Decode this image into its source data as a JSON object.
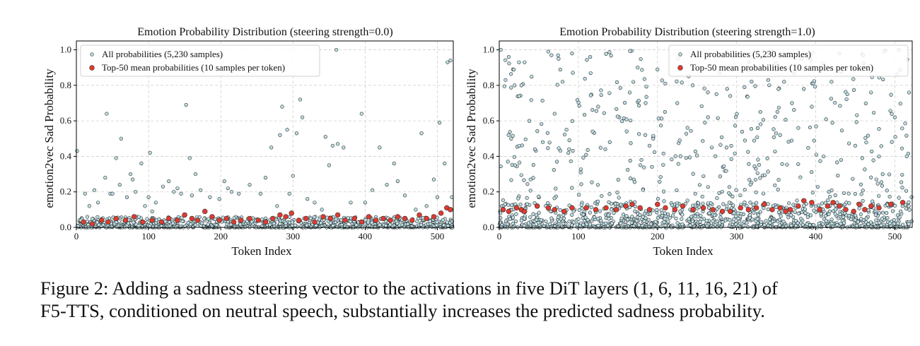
{
  "caption": {
    "line1": "Figure 2: Adding a sadness steering vector to the activations in five DiT layers (1, 6, 11, 16, 21) of",
    "line2": "F5-TTS, conditioned on neutral speech, substantially increases the predicted sadness probability."
  },
  "colors": {
    "all_fill": "#bfe0e6",
    "all_edge": "#222222",
    "mean_fill": "#e03a30",
    "mean_edge": "#333333",
    "grid": "#cfcfcf"
  },
  "chart_data": [
    {
      "type": "scatter",
      "title": "Emotion Probability Distribution (steering strength=0.0)",
      "xlabel": "Token Index",
      "ylabel": "emotion2vec Sad Probability",
      "xlim": [
        0,
        522
      ],
      "ylim": [
        0.0,
        1.05
      ],
      "xticks": [
        0,
        100,
        200,
        300,
        400,
        500
      ],
      "yticks": [
        0.0,
        0.2,
        0.4,
        0.6,
        0.8,
        1.0
      ],
      "ytick_labels": [
        "0.0",
        "0.2",
        "0.4",
        "0.6",
        "0.8",
        "1.0"
      ],
      "grid": true,
      "legend": {
        "position": "top-left",
        "entries": [
          "All probabilities (5,230 samples)",
          "Top-50 mean probabilities (10 samples per token)"
        ]
      },
      "series": [
        {
          "name": "All probabilities (5,230 samples)",
          "note": "dense band 0.00-0.05 across all tokens plus visible outliers",
          "base_band": {
            "ymin": 0.0,
            "ymax": 0.06,
            "count": 900
          },
          "points": [
            [
              1,
              0.43
            ],
            [
              12,
              0.19
            ],
            [
              18,
              0.12
            ],
            [
              25,
              0.21
            ],
            [
              30,
              0.14
            ],
            [
              40,
              0.28
            ],
            [
              42,
              0.64
            ],
            [
              47,
              0.19
            ],
            [
              50,
              0.19
            ],
            [
              55,
              0.39
            ],
            [
              60,
              0.24
            ],
            [
              62,
              0.5
            ],
            [
              70,
              0.17
            ],
            [
              75,
              0.3
            ],
            [
              78,
              0.27
            ],
            [
              82,
              0.2
            ],
            [
              90,
              0.36
            ],
            [
              95,
              0.12
            ],
            [
              100,
              0.17
            ],
            [
              102,
              0.42
            ],
            [
              105,
              0.09
            ],
            [
              110,
              0.14
            ],
            [
              120,
              0.23
            ],
            [
              128,
              0.26
            ],
            [
              135,
              0.2
            ],
            [
              140,
              0.22
            ],
            [
              145,
              0.19
            ],
            [
              152,
              0.69
            ],
            [
              157,
              0.39
            ],
            [
              160,
              0.18
            ],
            [
              165,
              0.3
            ],
            [
              172,
              0.21
            ],
            [
              185,
              0.17
            ],
            [
              198,
              0.16
            ],
            [
              205,
              0.26
            ],
            [
              210,
              0.22
            ],
            [
              215,
              0.2
            ],
            [
              225,
              0.19
            ],
            [
              240,
              0.24
            ],
            [
              255,
              0.19
            ],
            [
              262,
              0.28
            ],
            [
              270,
              0.45
            ],
            [
              278,
              0.12
            ],
            [
              282,
              0.52
            ],
            [
              285,
              0.68
            ],
            [
              292,
              0.55
            ],
            [
              295,
              0.19
            ],
            [
              300,
              0.29
            ],
            [
              305,
              0.53
            ],
            [
              310,
              0.72
            ],
            [
              313,
              0.62
            ],
            [
              320,
              0.16
            ],
            [
              330,
              0.14
            ],
            [
              340,
              0.1
            ],
            [
              345,
              0.51
            ],
            [
              350,
              0.35
            ],
            [
              355,
              0.46
            ],
            [
              360,
              1.0
            ],
            [
              362,
              0.47
            ],
            [
              370,
              0.45
            ],
            [
              380,
              0.14
            ],
            [
              395,
              0.64
            ],
            [
              400,
              0.14
            ],
            [
              410,
              0.21
            ],
            [
              420,
              0.45
            ],
            [
              430,
              0.24
            ],
            [
              440,
              0.36
            ],
            [
              445,
              0.26
            ],
            [
              455,
              0.18
            ],
            [
              470,
              0.1
            ],
            [
              478,
              0.53
            ],
            [
              485,
              0.12
            ],
            [
              495,
              0.27
            ],
            [
              500,
              0.17
            ],
            [
              503,
              0.59
            ],
            [
              510,
              0.36
            ],
            [
              514,
              0.93
            ],
            [
              518,
              0.94
            ],
            [
              520,
              0.17
            ]
          ]
        },
        {
          "name": "Top-50 mean probabilities (10 samples per token)",
          "points": [
            [
              10,
              0.03
            ],
            [
              22,
              0.02
            ],
            [
              35,
              0.04
            ],
            [
              44,
              0.03
            ],
            [
              55,
              0.05
            ],
            [
              68,
              0.04
            ],
            [
              80,
              0.06
            ],
            [
              92,
              0.03
            ],
            [
              105,
              0.04
            ],
            [
              118,
              0.03
            ],
            [
              128,
              0.05
            ],
            [
              140,
              0.04
            ],
            [
              150,
              0.07
            ],
            [
              160,
              0.05
            ],
            [
              168,
              0.04
            ],
            [
              178,
              0.09
            ],
            [
              188,
              0.06
            ],
            [
              198,
              0.04
            ],
            [
              208,
              0.05
            ],
            [
              218,
              0.03
            ],
            [
              228,
              0.04
            ],
            [
              240,
              0.05
            ],
            [
              252,
              0.04
            ],
            [
              262,
              0.03
            ],
            [
              272,
              0.05
            ],
            [
              282,
              0.07
            ],
            [
              290,
              0.06
            ],
            [
              298,
              0.08
            ],
            [
              308,
              0.04
            ],
            [
              318,
              0.05
            ],
            [
              330,
              0.03
            ],
            [
              342,
              0.06
            ],
            [
              352,
              0.05
            ],
            [
              362,
              0.07
            ],
            [
              372,
              0.04
            ],
            [
              385,
              0.05
            ],
            [
              395,
              0.03
            ],
            [
              405,
              0.06
            ],
            [
              415,
              0.04
            ],
            [
              425,
              0.05
            ],
            [
              435,
              0.04
            ],
            [
              445,
              0.06
            ],
            [
              455,
              0.05
            ],
            [
              465,
              0.04
            ],
            [
              475,
              0.07
            ],
            [
              485,
              0.05
            ],
            [
              495,
              0.06
            ],
            [
              505,
              0.08
            ],
            [
              513,
              0.11
            ],
            [
              518,
              0.1
            ]
          ]
        }
      ]
    },
    {
      "type": "scatter",
      "title": "Emotion Probability Distribution (steering strength=1.0)",
      "xlabel": "Token Index",
      "ylabel": "emotion2vec Sad Probability",
      "xlim": [
        0,
        522
      ],
      "ylim": [
        0.0,
        1.05
      ],
      "xticks": [
        0,
        100,
        200,
        300,
        400,
        500
      ],
      "yticks": [
        0.0,
        0.2,
        0.4,
        0.6,
        0.8,
        1.0
      ],
      "ytick_labels": [
        "0.0",
        "0.2",
        "0.4",
        "0.6",
        "0.8",
        "1.0"
      ],
      "grid": true,
      "legend": {
        "position": "top-right",
        "entries": [
          "All probabilities (5,230 samples)",
          "Top-50 mean probabilities (10 samples per token)"
        ]
      },
      "series": [
        {
          "name": "All probabilities (5,230 samples)",
          "note": "dense band 0.00-0.12 across all tokens plus many scattered high values",
          "base_band": {
            "ymin": 0.0,
            "ymax": 0.14,
            "count": 1000
          },
          "scatter_band": {
            "ymin": 0.12,
            "ymax": 1.0,
            "count": 420
          },
          "points": [
            [
              2,
              1.0
            ],
            [
              8,
              0.83
            ],
            [
              12,
              0.96
            ],
            [
              15,
              0.5
            ],
            [
              20,
              0.35
            ],
            [
              25,
              0.93
            ],
            [
              28,
              0.8
            ],
            [
              32,
              0.93
            ],
            [
              38,
              0.6
            ],
            [
              45,
              0.44
            ],
            [
              55,
              0.48
            ],
            [
              62,
              0.99
            ],
            [
              66,
              0.97
            ],
            [
              70,
              0.64
            ],
            [
              75,
              0.95
            ],
            [
              80,
              0.82
            ],
            [
              85,
              0.55
            ],
            [
              92,
              0.98
            ],
            [
              115,
              0.96
            ],
            [
              118,
              0.54
            ],
            [
              125,
              0.68
            ],
            [
              165,
              0.76
            ],
            [
              175,
              0.9
            ],
            [
              185,
              0.7
            ],
            [
              190,
              0.46
            ],
            [
              200,
              0.89
            ],
            [
              210,
              0.81
            ],
            [
              225,
              0.7
            ],
            [
              260,
              0.59
            ],
            [
              288,
              0.78
            ],
            [
              292,
              0.74
            ],
            [
              300,
              0.97
            ],
            [
              310,
              0.79
            ],
            [
              330,
              0.65
            ],
            [
              340,
              0.83
            ],
            [
              355,
              0.52
            ],
            [
              360,
              0.82
            ],
            [
              370,
              0.7
            ],
            [
              378,
              0.56
            ],
            [
              385,
              0.78
            ],
            [
              395,
              0.68
            ],
            [
              410,
              0.4
            ],
            [
              420,
              0.82
            ],
            [
              430,
              0.98
            ],
            [
              440,
              0.75
            ],
            [
              450,
              0.46
            ],
            [
              460,
              0.97
            ],
            [
              470,
              0.76
            ],
            [
              480,
              0.4
            ],
            [
              500,
              0.62
            ],
            [
              505,
              1.0
            ],
            [
              515,
              0.4
            ],
            [
              518,
              0.76
            ]
          ]
        },
        {
          "name": "Top-50 mean probabilities (10 samples per token)",
          "points": [
            [
              5,
              0.1
            ],
            [
              12,
              0.09
            ],
            [
              22,
              0.11
            ],
            [
              28,
              0.1
            ],
            [
              32,
              0.09
            ],
            [
              48,
              0.12
            ],
            [
              62,
              0.11
            ],
            [
              70,
              0.1
            ],
            [
              82,
              0.09
            ],
            [
              92,
              0.11
            ],
            [
              110,
              0.11
            ],
            [
              122,
              0.1
            ],
            [
              135,
              0.11
            ],
            [
              148,
              0.1
            ],
            [
              160,
              0.12
            ],
            [
              168,
              0.13
            ],
            [
              178,
              0.11
            ],
            [
              190,
              0.1
            ],
            [
              200,
              0.13
            ],
            [
              210,
              0.11
            ],
            [
              222,
              0.1
            ],
            [
              232,
              0.12
            ],
            [
              245,
              0.1
            ],
            [
              258,
              0.11
            ],
            [
              270,
              0.1
            ],
            [
              282,
              0.09
            ],
            [
              292,
              0.09
            ],
            [
              305,
              0.11
            ],
            [
              315,
              0.1
            ],
            [
              325,
              0.11
            ],
            [
              335,
              0.13
            ],
            [
              345,
              0.1
            ],
            [
              355,
              0.11
            ],
            [
              362,
              0.09
            ],
            [
              368,
              0.1
            ],
            [
              378,
              0.12
            ],
            [
              385,
              0.15
            ],
            [
              395,
              0.14
            ],
            [
              405,
              0.1
            ],
            [
              415,
              0.12
            ],
            [
              422,
              0.14
            ],
            [
              430,
              0.12
            ],
            [
              438,
              0.1
            ],
            [
              448,
              0.09
            ],
            [
              455,
              0.13
            ],
            [
              462,
              0.1
            ],
            [
              470,
              0.12
            ],
            [
              480,
              0.11
            ],
            [
              495,
              0.13
            ],
            [
              510,
              0.14
            ]
          ]
        }
      ]
    }
  ]
}
